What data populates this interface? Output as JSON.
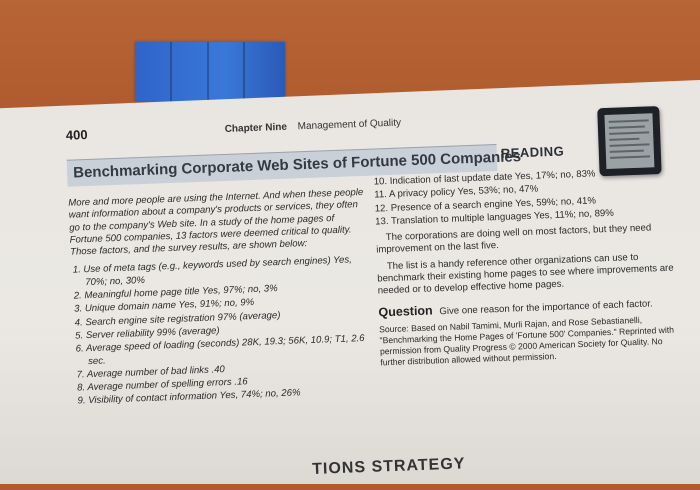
{
  "page_number": "400",
  "running_head": {
    "chapter": "Chapter Nine",
    "title": "Management of Quality"
  },
  "banner_title": "Benchmarking Corporate Web Sites of Fortune 500 Companies",
  "banner_tag": "READING",
  "intro": "More and more people are using the Internet. And when these people want information about a company's products or services, they often go to the company's Web site. In a study of the home pages of Fortune 500 companies, 13 factors were deemed critical to quality. Those factors, and the survey results, are shown below:",
  "factors_left": [
    "1. Use of meta tags (e.g., keywords used by search engines) Yes, 70%; no, 30%",
    "2. Meaningful home page title Yes, 97%; no, 3%",
    "3. Unique domain name Yes, 91%; no, 9%",
    "4. Search engine site registration 97% (average)",
    "5. Server reliability 99% (average)",
    "6. Average speed of loading (seconds) 28K, 19.3; 56K, 10.9; T1, 2.6 sec.",
    "7. Average number of bad links .40",
    "8. Average number of spelling errors .16",
    "9. Visibility of contact information Yes, 74%; no, 26%"
  ],
  "factors_right": [
    "10. Indication of last update date Yes, 17%; no, 83%",
    "11. A privacy policy Yes, 53%; no, 47%",
    "12. Presence of a search engine Yes, 59%; no, 41%",
    "13. Translation to multiple languages Yes, 11%; no, 89%"
  ],
  "paragraph_1": "The corporations are doing well on most factors, but they need improvement on the last five.",
  "paragraph_2": "The list is a handy reference other organizations can use to benchmark their existing home pages to see where improvements are needed or to develop effective home pages.",
  "question_label": "Question",
  "question_text": "Give one reason for the importance of each factor.",
  "source": "Source: Based on Nabil Tamimi, Murli Rajan, and Rose Sebastianelli, \"Benchmarking the Home Pages of 'Fortune 500' Companies.\" Reprinted with permission from Quality Progress © 2000 American Society for Quality. No further distribution allowed without permission.",
  "bottom_heading": "TIONS STRATEGY"
}
